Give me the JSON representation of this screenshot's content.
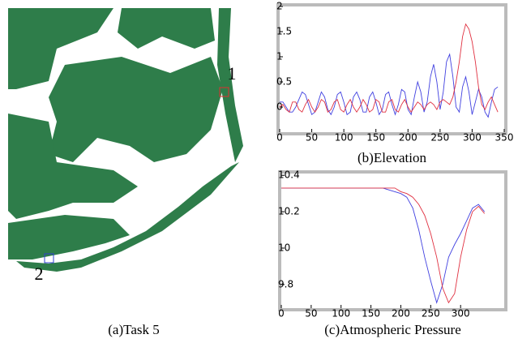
{
  "map": {
    "caption": "(a)Task 5",
    "markers": [
      {
        "label": "1",
        "color": "#e03030"
      },
      {
        "label": "2",
        "color": "#3040d0"
      }
    ]
  },
  "chart_data": [
    {
      "type": "line",
      "title": "(b)Elevation",
      "x": [
        0,
        5,
        10,
        15,
        20,
        25,
        30,
        35,
        40,
        45,
        50,
        55,
        60,
        65,
        70,
        75,
        80,
        85,
        90,
        95,
        100,
        105,
        110,
        115,
        120,
        125,
        130,
        135,
        140,
        145,
        150,
        155,
        160,
        165,
        170,
        175,
        180,
        185,
        190,
        195,
        200,
        205,
        210,
        215,
        220,
        225,
        230,
        235,
        240,
        245,
        250,
        255,
        260,
        265,
        270,
        275,
        280,
        285,
        290,
        295,
        300,
        305,
        310,
        315,
        320,
        325,
        330,
        335,
        340
      ],
      "series": [
        {
          "color": "#4040e0",
          "values": [
            0.1,
            0.1,
            0,
            -0.1,
            -0.1,
            0,
            0.15,
            0.3,
            0.25,
            0.05,
            -0.15,
            -0.1,
            0.1,
            0.3,
            0.2,
            -0.05,
            -0.15,
            0,
            0.25,
            0.3,
            0.1,
            -0.15,
            -0.1,
            0.2,
            0.3,
            0.15,
            -0.1,
            -0.1,
            0.2,
            0.3,
            0.1,
            -0.15,
            -0.05,
            0.25,
            0.3,
            0.05,
            -0.15,
            0.05,
            0.35,
            0.3,
            -0.05,
            -0.15,
            0.2,
            0.5,
            0.3,
            -0.1,
            0.1,
            0.6,
            0.85,
            0.5,
            -0.05,
            0.3,
            0.9,
            1.05,
            0.6,
            0,
            -0.1,
            0.4,
            0.6,
            0.3,
            -0.15,
            0.1,
            0.35,
            0.2,
            -0.1,
            -0.2,
            0.1,
            0.35,
            0.4
          ]
        },
        {
          "color": "#e03040",
          "values": [
            0,
            0.05,
            -0.05,
            -0.1,
            0.1,
            0.1,
            -0.05,
            -0.1,
            0.05,
            0.15,
            0,
            -0.1,
            0,
            0.15,
            0.1,
            -0.1,
            -0.05,
            0.1,
            0.15,
            -0.05,
            -0.1,
            0.05,
            0.15,
            0,
            -0.1,
            0,
            0.15,
            0.05,
            -0.1,
            -0.05,
            0.15,
            0.1,
            -0.1,
            -0.1,
            0.1,
            0.15,
            -0.05,
            -0.1,
            0.05,
            0.15,
            0,
            -0.1,
            0,
            0.1,
            0.05,
            -0.05,
            0.05,
            0.1,
            0.05,
            -0.05,
            0.1,
            0.15,
            0.1,
            0.05,
            0.2,
            0.5,
            0.9,
            1.4,
            1.65,
            1.55,
            1.3,
            0.9,
            0.4,
            0.05,
            -0.05,
            0.1,
            0.2,
            0.05,
            -0.1
          ]
        }
      ],
      "xlim": [
        0,
        350
      ],
      "xticks": [
        0,
        50,
        100,
        150,
        200,
        250,
        300,
        350
      ],
      "ylim": [
        -0.5,
        2
      ],
      "yticks": [
        0,
        0.5,
        1,
        1.5,
        2
      ]
    },
    {
      "type": "line",
      "title": "(c)Atmospheric Pressure",
      "x": [
        0,
        10,
        20,
        30,
        40,
        50,
        60,
        70,
        80,
        90,
        100,
        110,
        120,
        130,
        140,
        150,
        160,
        170,
        180,
        190,
        200,
        210,
        220,
        230,
        240,
        250,
        260,
        270,
        280,
        290,
        300,
        310,
        320,
        330,
        340
      ],
      "series": [
        {
          "color": "#4040e0",
          "values": [
            10.33,
            10.33,
            10.33,
            10.33,
            10.33,
            10.33,
            10.33,
            10.33,
            10.33,
            10.33,
            10.33,
            10.33,
            10.33,
            10.33,
            10.33,
            10.33,
            10.33,
            10.33,
            10.32,
            10.31,
            10.3,
            10.28,
            10.22,
            10.1,
            9.95,
            9.82,
            9.7,
            9.8,
            9.95,
            10.02,
            10.08,
            10.15,
            10.22,
            10.24,
            10.2
          ]
        },
        {
          "color": "#e03040",
          "values": [
            10.33,
            10.33,
            10.33,
            10.33,
            10.33,
            10.33,
            10.33,
            10.33,
            10.33,
            10.33,
            10.33,
            10.33,
            10.33,
            10.33,
            10.33,
            10.33,
            10.33,
            10.33,
            10.33,
            10.33,
            10.31,
            10.3,
            10.28,
            10.24,
            10.18,
            10.08,
            9.95,
            9.78,
            9.7,
            9.75,
            9.95,
            10.1,
            10.2,
            10.23,
            10.19
          ]
        }
      ],
      "xlim": [
        0,
        373
      ],
      "xticks": [
        0,
        50,
        100,
        150,
        200,
        250,
        300
      ],
      "ylim": [
        9.67,
        10.41
      ],
      "yticks": [
        9.8,
        10,
        10.2,
        10.4
      ]
    }
  ]
}
